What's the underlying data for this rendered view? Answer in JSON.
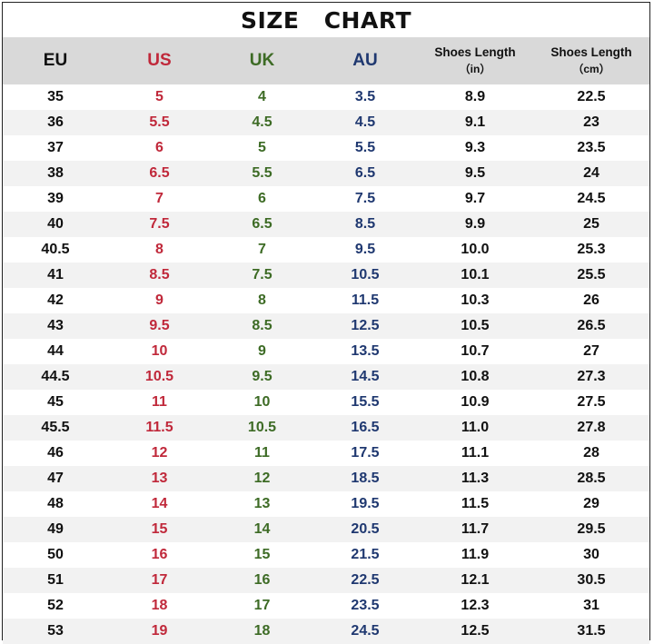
{
  "title": "SIZE CHART",
  "headers": {
    "eu": "EU",
    "us": "US",
    "uk": "UK",
    "au": "AU",
    "in_label": "Shoes Length",
    "in_unit": "（in）",
    "cm_label": "Shoes Length",
    "cm_unit": "（cm）"
  },
  "colors": {
    "eu": "#111111",
    "us": "#c0283a",
    "uk": "#3d6b25",
    "au": "#1f3870",
    "header_bg": "#d9d9d9",
    "stripe_bg": "#f2f2f2"
  },
  "rows": [
    {
      "eu": "35",
      "us": "5",
      "uk": "4",
      "au": "3.5",
      "in": "8.9",
      "cm": "22.5"
    },
    {
      "eu": "36",
      "us": "5.5",
      "uk": "4.5",
      "au": "4.5",
      "in": "9.1",
      "cm": "23"
    },
    {
      "eu": "37",
      "us": "6",
      "uk": "5",
      "au": "5.5",
      "in": "9.3",
      "cm": "23.5"
    },
    {
      "eu": "38",
      "us": "6.5",
      "uk": "5.5",
      "au": "6.5",
      "in": "9.5",
      "cm": "24"
    },
    {
      "eu": "39",
      "us": "7",
      "uk": "6",
      "au": "7.5",
      "in": "9.7",
      "cm": "24.5"
    },
    {
      "eu": "40",
      "us": "7.5",
      "uk": "6.5",
      "au": "8.5",
      "in": "9.9",
      "cm": "25"
    },
    {
      "eu": "40.5",
      "us": "8",
      "uk": "7",
      "au": "9.5",
      "in": "10.0",
      "cm": "25.3"
    },
    {
      "eu": "41",
      "us": "8.5",
      "uk": "7.5",
      "au": "10.5",
      "in": "10.1",
      "cm": "25.5"
    },
    {
      "eu": "42",
      "us": "9",
      "uk": "8",
      "au": "11.5",
      "in": "10.3",
      "cm": "26"
    },
    {
      "eu": "43",
      "us": "9.5",
      "uk": "8.5",
      "au": "12.5",
      "in": "10.5",
      "cm": "26.5"
    },
    {
      "eu": "44",
      "us": "10",
      "uk": "9",
      "au": "13.5",
      "in": "10.7",
      "cm": "27"
    },
    {
      "eu": "44.5",
      "us": "10.5",
      "uk": "9.5",
      "au": "14.5",
      "in": "10.8",
      "cm": "27.3"
    },
    {
      "eu": "45",
      "us": "11",
      "uk": "10",
      "au": "15.5",
      "in": "10.9",
      "cm": "27.5"
    },
    {
      "eu": "45.5",
      "us": "11.5",
      "uk": "10.5",
      "au": "16.5",
      "in": "11.0",
      "cm": "27.8"
    },
    {
      "eu": "46",
      "us": "12",
      "uk": "11",
      "au": "17.5",
      "in": "11.1",
      "cm": "28"
    },
    {
      "eu": "47",
      "us": "13",
      "uk": "12",
      "au": "18.5",
      "in": "11.3",
      "cm": "28.5"
    },
    {
      "eu": "48",
      "us": "14",
      "uk": "13",
      "au": "19.5",
      "in": "11.5",
      "cm": "29"
    },
    {
      "eu": "49",
      "us": "15",
      "uk": "14",
      "au": "20.5",
      "in": "11.7",
      "cm": "29.5"
    },
    {
      "eu": "50",
      "us": "16",
      "uk": "15",
      "au": "21.5",
      "in": "11.9",
      "cm": "30"
    },
    {
      "eu": "51",
      "us": "17",
      "uk": "16",
      "au": "22.5",
      "in": "12.1",
      "cm": "30.5"
    },
    {
      "eu": "52",
      "us": "18",
      "uk": "17",
      "au": "23.5",
      "in": "12.3",
      "cm": "31"
    },
    {
      "eu": "53",
      "us": "19",
      "uk": "18",
      "au": "24.5",
      "in": "12.5",
      "cm": "31.5"
    }
  ]
}
